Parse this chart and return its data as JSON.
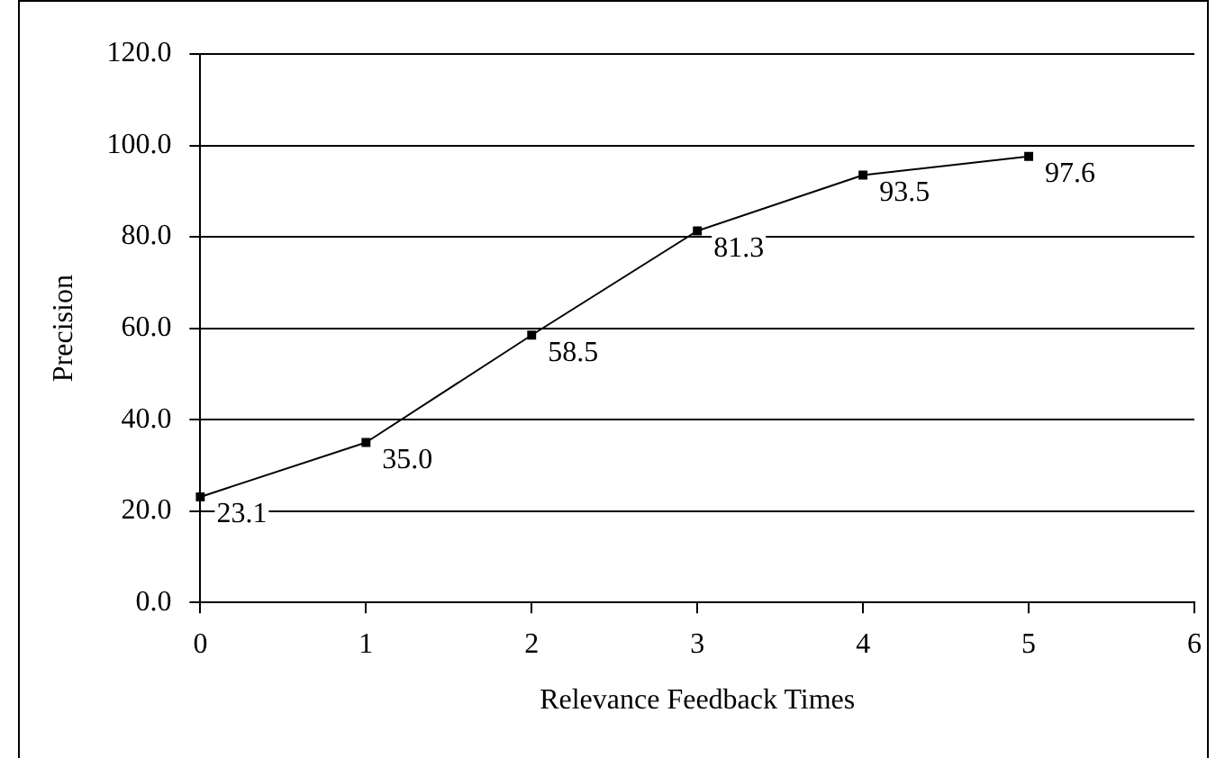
{
  "chart_data": {
    "type": "line",
    "xlabel": "Relevance Feedback Times",
    "ylabel": "Precision",
    "x": [
      0,
      1,
      2,
      3,
      4,
      5
    ],
    "series": [
      {
        "color": "#000000",
        "values": [
          23.1,
          35.0,
          58.5,
          81.3,
          93.5,
          97.6
        ],
        "value_labels": [
          "23.1",
          "35.0",
          "58.5",
          "81.3",
          "93.5",
          "97.6"
        ]
      }
    ],
    "xlim": [
      0,
      6
    ],
    "xticks": [
      0,
      1,
      2,
      3,
      4,
      5,
      6
    ],
    "ylim": [
      0,
      120
    ],
    "yticks": [
      {
        "value": 0,
        "label": "0.0"
      },
      {
        "value": 20,
        "label": "20.0"
      },
      {
        "value": 40,
        "label": "40.0"
      },
      {
        "value": 60,
        "label": "60.0"
      },
      {
        "value": 80,
        "label": "80.0"
      },
      {
        "value": 100,
        "label": "100.0"
      },
      {
        "value": 120,
        "label": "120.0"
      }
    ],
    "grid": "y",
    "legend": false,
    "marker": "square",
    "line_style": "solid"
  }
}
